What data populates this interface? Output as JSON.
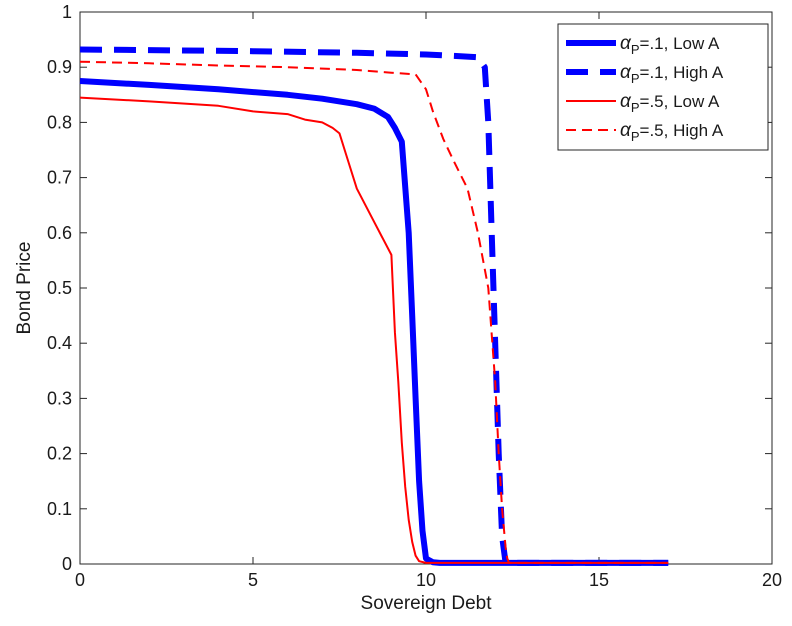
{
  "chart_data": {
    "type": "line",
    "title": "",
    "xlabel": "Sovereign Debt",
    "ylabel": "Bond Price",
    "xlim": [
      0,
      20
    ],
    "ylim": [
      0,
      1
    ],
    "xticks": [
      0,
      5,
      10,
      15,
      20
    ],
    "xtick_labels": [
      "0",
      "5",
      "10",
      "15",
      "20"
    ],
    "yticks": [
      0,
      0.1,
      0.2,
      0.3,
      0.4,
      0.5,
      0.6,
      0.7,
      0.8,
      0.9,
      1
    ],
    "ytick_labels": [
      "0",
      "0.1",
      "0.2",
      "0.3",
      "0.4",
      "0.5",
      "0.6",
      "0.7",
      "0.8",
      "0.9",
      "1"
    ],
    "grid": false,
    "legend_position": "top-right",
    "series": [
      {
        "name_symbol": "α",
        "name_subscript": "P",
        "name_rest": "=.1, Low A",
        "color": "#0000ff",
        "line_style": "solid",
        "line_weight": "thick",
        "x": [
          0,
          2,
          4,
          6,
          7,
          8,
          8.5,
          8.9,
          9.1,
          9.3,
          9.5,
          9.6,
          9.7,
          9.8,
          9.9,
          10.0,
          10.2,
          10.4,
          12,
          15,
          17
        ],
        "y": [
          0.875,
          0.868,
          0.86,
          0.85,
          0.843,
          0.833,
          0.825,
          0.81,
          0.79,
          0.765,
          0.6,
          0.45,
          0.3,
          0.15,
          0.06,
          0.01,
          0.003,
          0.002,
          0.002,
          0.002,
          0.002
        ]
      },
      {
        "name_symbol": "α",
        "name_subscript": "P",
        "name_rest": "=.1, High A",
        "color": "#0000ff",
        "line_style": "dashed",
        "line_weight": "thick",
        "x": [
          0,
          2,
          5,
          8,
          10,
          11,
          11.5,
          11.7,
          11.8,
          11.9,
          12.0,
          12.1,
          12.2,
          12.3,
          13,
          15,
          17
        ],
        "y": [
          0.932,
          0.931,
          0.929,
          0.926,
          0.923,
          0.92,
          0.918,
          0.9,
          0.8,
          0.6,
          0.4,
          0.2,
          0.05,
          0.002,
          0.002,
          0.002,
          0.002
        ]
      },
      {
        "name_symbol": "α",
        "name_subscript": "P",
        "name_rest": "=.5, Low A",
        "color": "#ff0000",
        "line_style": "solid",
        "line_weight": "thin",
        "x": [
          0,
          2,
          4,
          5,
          6,
          6.5,
          7,
          7.3,
          7.5,
          7.7,
          8,
          8.5,
          9.0,
          9.1,
          9.2,
          9.3,
          9.4,
          9.5,
          9.6,
          9.7,
          9.8,
          10.0,
          10.5,
          12,
          15,
          17
        ],
        "y": [
          0.845,
          0.838,
          0.83,
          0.82,
          0.815,
          0.805,
          0.8,
          0.79,
          0.78,
          0.74,
          0.68,
          0.62,
          0.56,
          0.42,
          0.33,
          0.22,
          0.14,
          0.08,
          0.04,
          0.015,
          0.005,
          0.002,
          0.002,
          0.002,
          0.002,
          0.002
        ]
      },
      {
        "name_symbol": "α",
        "name_subscript": "P",
        "name_rest": "=.5, High A",
        "color": "#ff0000",
        "line_style": "dashed",
        "line_weight": "thin",
        "x": [
          0,
          2,
          4,
          6,
          8,
          9,
          9.7,
          10,
          10.2,
          10.5,
          10.8,
          11.2,
          11.5,
          11.8,
          12.0,
          12.1,
          12.2,
          12.3,
          12.35,
          12.4,
          13,
          15,
          17
        ],
        "y": [
          0.91,
          0.907,
          0.903,
          0.9,
          0.895,
          0.89,
          0.887,
          0.86,
          0.82,
          0.77,
          0.73,
          0.68,
          0.6,
          0.5,
          0.33,
          0.2,
          0.1,
          0.03,
          0.01,
          0.002,
          0.002,
          0.002,
          0.002
        ]
      }
    ]
  }
}
